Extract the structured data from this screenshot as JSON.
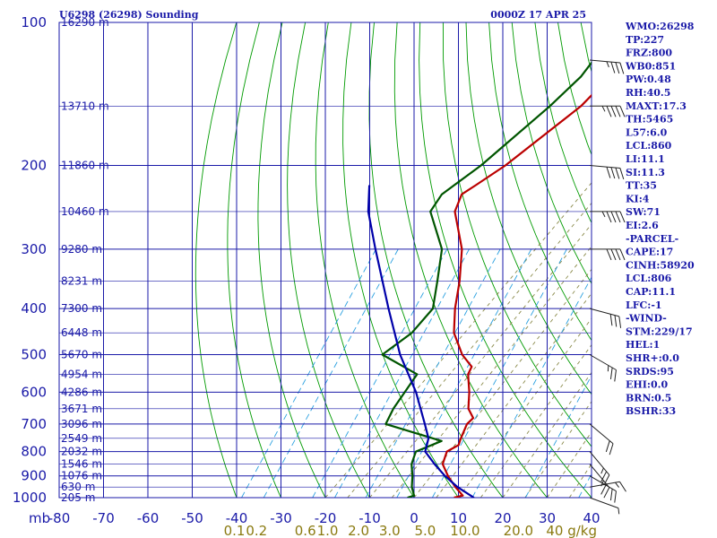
{
  "header": {
    "station": "U6298 (26298) Sounding",
    "time": "0000Z 17 APR 25"
  },
  "indices": [
    "WMO:26298",
    "TP:227",
    "FRZ:800",
    "WB0:851",
    "PW:0.48",
    "RH:40.5",
    "MAXT:17.3",
    "TH:5465",
    "L57:6.0",
    "LCL:860",
    "LI:11.1",
    "SI:11.3",
    "TT:35",
    "KI:4",
    "SW:71",
    "EI:2.6",
    "-PARCEL-",
    "CAPE:17",
    "CINH:58920",
    "LCL:806",
    "CAP:11.1",
    "LFC:-1",
    "-WIND-",
    "STM:229/17",
    "HEL:1",
    "SHR+:0.0",
    "SRDS:95",
    "EHI:0.0",
    "BRN:0.5",
    "BSHR:33"
  ],
  "colors": {
    "background": "#ffffff",
    "grid": "#1a1aa8",
    "dry_adiabat": "#009a00",
    "moist_adiabat": "#8a8a4a",
    "mixing_ratio": "#2aa0e0",
    "temperature": "#bb0000",
    "dewpoint": "#005500",
    "parcel": "#0000aa",
    "wind": "#222222"
  },
  "chart_data": {
    "type": "line",
    "x_axis": {
      "label": "",
      "range": [
        -80,
        40
      ],
      "ticks": [
        -80,
        -70,
        -60,
        -50,
        -40,
        -30,
        -20,
        -10,
        0,
        10,
        20,
        30,
        40
      ],
      "tick_labels": [
        "-80",
        "-70",
        "-60",
        "-50",
        "-40",
        "-30",
        "-20",
        "-10",
        "0",
        "10",
        "20",
        "30",
        "40"
      ],
      "corner_label": "mb"
    },
    "y_axis": {
      "label": "",
      "scale": "log",
      "range": [
        1000,
        100
      ],
      "ticks": [
        100,
        200,
        300,
        400,
        500,
        600,
        700,
        800,
        900,
        1000
      ]
    },
    "height_labels": [
      {
        "p": 100,
        "text": "16290 m"
      },
      {
        "p": 150,
        "text": "13710 m"
      },
      {
        "p": 200,
        "text": "11860 m"
      },
      {
        "p": 250,
        "text": "10460 m"
      },
      {
        "p": 300,
        "text": "9280 m"
      },
      {
        "p": 350,
        "text": "8231 m"
      },
      {
        "p": 400,
        "text": "7300 m"
      },
      {
        "p": 450,
        "text": "6448 m"
      },
      {
        "p": 500,
        "text": "5670 m"
      },
      {
        "p": 550,
        "text": "4954 m"
      },
      {
        "p": 600,
        "text": "4286 m"
      },
      {
        "p": 650,
        "text": "3671 m"
      },
      {
        "p": 700,
        "text": "3096 m"
      },
      {
        "p": 750,
        "text": "2549 m"
      },
      {
        "p": 800,
        "text": "2032 m"
      },
      {
        "p": 850,
        "text": "1546 m"
      },
      {
        "p": 900,
        "text": "1076 m"
      },
      {
        "p": 950,
        "text": "630 m"
      },
      {
        "p": 1000,
        "text": "205 m"
      }
    ],
    "mixing_ratio_labels": [
      {
        "x": -40.5,
        "text": "0.1"
      },
      {
        "x": -35.5,
        "text": "0.2"
      },
      {
        "x": -24.5,
        "text": "0.6"
      },
      {
        "x": -19.5,
        "text": "1.0"
      },
      {
        "x": -12.5,
        "text": "2.0"
      },
      {
        "x": -5.5,
        "text": "3.0"
      },
      {
        "x": 2.5,
        "text": "5.0"
      },
      {
        "x": 11.5,
        "text": "10.0"
      },
      {
        "x": 23.5,
        "text": "20.0"
      },
      {
        "x": 35.5,
        "text": "40 g/kg"
      }
    ],
    "series": [
      {
        "key": "temperature",
        "points": [
          {
            "p": 1000,
            "t": 9
          },
          {
            "p": 990,
            "t": 10.5
          },
          {
            "p": 950,
            "t": 6.8
          },
          {
            "p": 900,
            "t": 2.5
          },
          {
            "p": 850,
            "t": -1.5
          },
          {
            "p": 800,
            "t": -3.5
          },
          {
            "p": 775,
            "t": -2.4
          },
          {
            "p": 750,
            "t": -3.5
          },
          {
            "p": 700,
            "t": -5.5
          },
          {
            "p": 680,
            "t": -5.5
          },
          {
            "p": 650,
            "t": -8.8
          },
          {
            "p": 600,
            "t": -12.5
          },
          {
            "p": 550,
            "t": -17
          },
          {
            "p": 530,
            "t": -18
          },
          {
            "p": 500,
            "t": -23
          },
          {
            "p": 450,
            "t": -30
          },
          {
            "p": 400,
            "t": -35.5
          },
          {
            "p": 350,
            "t": -41
          },
          {
            "p": 300,
            "t": -48
          },
          {
            "p": 250,
            "t": -58.5
          },
          {
            "p": 230,
            "t": -61
          },
          {
            "p": 220,
            "t": -60
          },
          {
            "p": 200,
            "t": -58
          },
          {
            "p": 150,
            "t": -55
          },
          {
            "p": 130,
            "t": -55.5
          },
          {
            "p": 100,
            "t": -57
          }
        ]
      },
      {
        "key": "dewpoint",
        "points": [
          {
            "p": 1000,
            "t": -1.5
          },
          {
            "p": 990,
            "t": -0.5
          },
          {
            "p": 950,
            "t": -3
          },
          {
            "p": 900,
            "t": -5.5
          },
          {
            "p": 850,
            "t": -8.5
          },
          {
            "p": 800,
            "t": -10.5
          },
          {
            "p": 760,
            "t": -7.2
          },
          {
            "p": 700,
            "t": -23.8
          },
          {
            "p": 650,
            "t": -25.7
          },
          {
            "p": 550,
            "t": -28.5
          },
          {
            "p": 500,
            "t": -41
          },
          {
            "p": 450,
            "t": -39.5
          },
          {
            "p": 400,
            "t": -40.5
          },
          {
            "p": 350,
            "t": -46
          },
          {
            "p": 300,
            "t": -52.5
          },
          {
            "p": 250,
            "t": -64
          },
          {
            "p": 230,
            "t": -65.5
          },
          {
            "p": 200,
            "t": -63.5
          },
          {
            "p": 150,
            "t": -62
          },
          {
            "p": 130,
            "t": -62
          },
          {
            "p": 100,
            "t": -65.5
          }
        ]
      },
      {
        "key": "parcel",
        "points": [
          {
            "p": 1000,
            "t": 13.5
          },
          {
            "p": 950,
            "t": 7.3
          },
          {
            "p": 900,
            "t": 1.8
          },
          {
            "p": 850,
            "t": -3.3
          },
          {
            "p": 800,
            "t": -8.4
          },
          {
            "p": 750,
            "t": -10.8
          },
          {
            "p": 700,
            "t": -15
          },
          {
            "p": 600,
            "t": -24.5
          },
          {
            "p": 500,
            "t": -37
          },
          {
            "p": 400,
            "t": -50.5
          },
          {
            "p": 300,
            "t": -67.5
          },
          {
            "p": 250,
            "t": -78
          },
          {
            "p": 220,
            "t": -84
          }
        ]
      }
    ],
    "wind_barbs": [
      {
        "p": 1000,
        "dir": 290,
        "spd": 5
      },
      {
        "p": 950,
        "dir": 260,
        "spd": 15
      },
      {
        "p": 900,
        "dir": 300,
        "spd": 20
      },
      {
        "p": 850,
        "dir": 320,
        "spd": 25
      },
      {
        "p": 800,
        "dir": 320,
        "spd": 25
      },
      {
        "p": 700,
        "dir": 310,
        "spd": 20
      },
      {
        "p": 500,
        "dir": 300,
        "spd": 25
      },
      {
        "p": 400,
        "dir": 285,
        "spd": 30
      },
      {
        "p": 300,
        "dir": 270,
        "spd": 40
      },
      {
        "p": 250,
        "dir": 270,
        "spd": 45
      },
      {
        "p": 200,
        "dir": 275,
        "spd": 40
      },
      {
        "p": 150,
        "dir": 270,
        "spd": 45
      },
      {
        "p": 120,
        "dir": 275,
        "spd": 35
      }
    ]
  }
}
